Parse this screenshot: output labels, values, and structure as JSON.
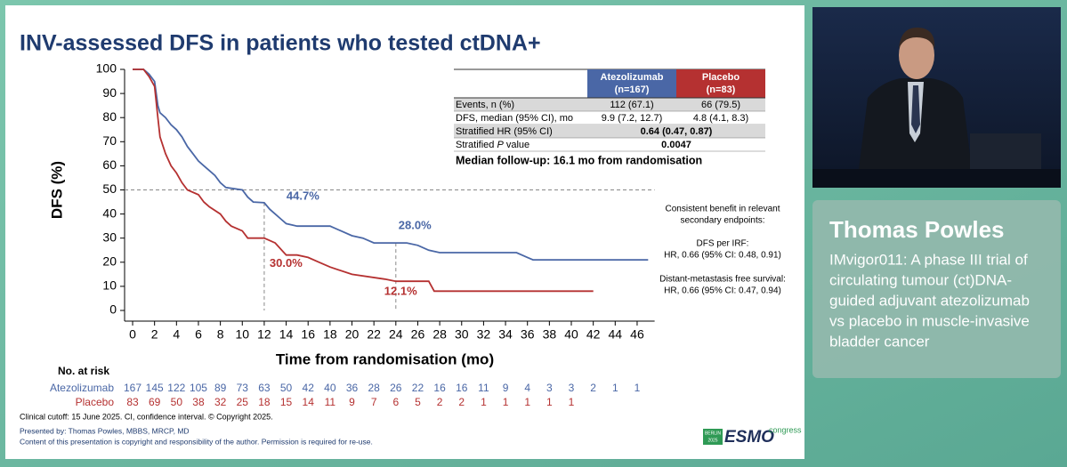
{
  "chart_data": {
    "type": "line",
    "title": "INV-assessed DFS in patients who tested ctDNA+",
    "ylabel": "DFS (%)",
    "xlabel": "Time from randomisation (mo)",
    "xlim": [
      -1,
      48
    ],
    "ylim": [
      0,
      100
    ],
    "xticks": [
      0,
      2,
      4,
      6,
      8,
      10,
      12,
      14,
      16,
      18,
      20,
      22,
      24,
      26,
      28,
      30,
      32,
      34,
      36,
      38,
      40,
      42,
      44,
      46
    ],
    "yticks": [
      0,
      10,
      20,
      30,
      40,
      50,
      60,
      70,
      80,
      90,
      100
    ],
    "reference_y": 50,
    "series": [
      {
        "name": "Atezolizumab",
        "color": "#4a67a6",
        "x": [
          0,
          1,
          1.5,
          2,
          2.3,
          2.5,
          3,
          3.5,
          4,
          4.5,
          5,
          5.5,
          6,
          6.5,
          7,
          7.5,
          8,
          8.5,
          10,
          10.5,
          11,
          12,
          12.5,
          13,
          13.5,
          14,
          15,
          18,
          19,
          20,
          21,
          22,
          24,
          25,
          26,
          27,
          28,
          35,
          36,
          36.5,
          47
        ],
        "values": [
          100,
          100,
          98,
          95,
          85,
          82,
          80,
          77,
          75,
          72,
          68,
          65,
          62,
          60,
          58,
          56,
          53,
          51,
          50,
          47,
          45,
          44.7,
          42,
          40,
          38,
          36,
          35,
          35,
          33,
          31,
          30,
          28,
          28,
          28,
          27,
          25,
          24,
          24,
          22,
          21,
          21
        ]
      },
      {
        "name": "Placebo",
        "color": "#b53131",
        "x": [
          0,
          1,
          1.5,
          2,
          2.3,
          2.5,
          3,
          3.5,
          4,
          4.5,
          5,
          6,
          6.5,
          7,
          8,
          8.5,
          9,
          10,
          10.5,
          12,
          13,
          14,
          15,
          16,
          17,
          18,
          20,
          23,
          24,
          27,
          27.5,
          42
        ],
        "values": [
          100,
          100,
          97,
          93,
          80,
          72,
          65,
          60,
          57,
          53,
          50,
          48,
          45,
          43,
          40,
          37,
          35,
          33,
          30,
          30,
          28,
          23,
          23,
          22,
          20,
          18,
          15,
          13,
          12.1,
          12.1,
          8,
          8
        ]
      }
    ],
    "annotations": [
      {
        "text": "44.7%",
        "x": 12,
        "y": 44.7,
        "series": 0
      },
      {
        "text": "28.0%",
        "x": 24,
        "y": 28.0,
        "series": 0
      },
      {
        "text": "30.0%",
        "x": 12,
        "y": 30.0,
        "series": 1
      },
      {
        "text": "12.1%",
        "x": 24,
        "y": 12.1,
        "series": 1
      }
    ],
    "risk_table": {
      "title": "No. at risk",
      "rows": [
        [
          167,
          145,
          122,
          105,
          89,
          73,
          63,
          50,
          42,
          40,
          36,
          28,
          26,
          22,
          16,
          16,
          11,
          9,
          4,
          3,
          3,
          2,
          1,
          1
        ],
        [
          83,
          69,
          50,
          38,
          32,
          25,
          18,
          15,
          14,
          11,
          9,
          7,
          6,
          5,
          2,
          2,
          1,
          1,
          1,
          1,
          1
        ]
      ]
    }
  },
  "summary_table": {
    "header": [
      [
        "Atezolizumab",
        "(n=167)"
      ],
      [
        "Placebo",
        "(n=83)"
      ]
    ],
    "rows": [
      {
        "label": "Events, n (%)",
        "cells": [
          "112 (67.1)",
          "66 (79.5)"
        ]
      },
      {
        "label": "DFS, median (95% CI), mo",
        "cells": [
          "9.9 (7.2, 12.7)",
          "4.8 (4.1, 8.3)"
        ]
      },
      {
        "label": "Stratified HR (95% CI)",
        "merged": "0.64 (0.47, 0.87)"
      },
      {
        "label_parts": [
          "Stratified ",
          "P",
          " value"
        ],
        "merged": "0.0047"
      }
    ],
    "note": "Median follow-up: 16.1 mo from randomisation"
  },
  "secondary": {
    "lines": [
      "Consistent benefit in relevant",
      "secondary endpoints:",
      "DFS per IRF:",
      "HR, 0.66 (95% CI: 0.48, 0.91)",
      "Distant-metastasis free survival:",
      "HR, 0.66 (95% CI: 0.47, 0.94)"
    ]
  },
  "footer": {
    "cutoff": "Clinical cutoff: 15 June 2025. CI, confidence interval. © Copyright 2025.",
    "presenter": "Presented by: Thomas Powles, MBBS, MRCP, MD",
    "copyright": "Content of this presentation is copyright and responsibility of the author. Permission is required for re-use."
  },
  "logo": {
    "city": "BERLIN",
    "year": "2025",
    "brand": "ESMO",
    "word": "congress"
  },
  "speaker": {
    "name": "Thomas Powles",
    "talk_lines": [
      "IMvigor011: A phase III trial of",
      "circulating tumour (ct)DNA-",
      "guided adjuvant atezolizumab",
      "vs placebo in muscle-invasive",
      "bladder cancer"
    ]
  }
}
